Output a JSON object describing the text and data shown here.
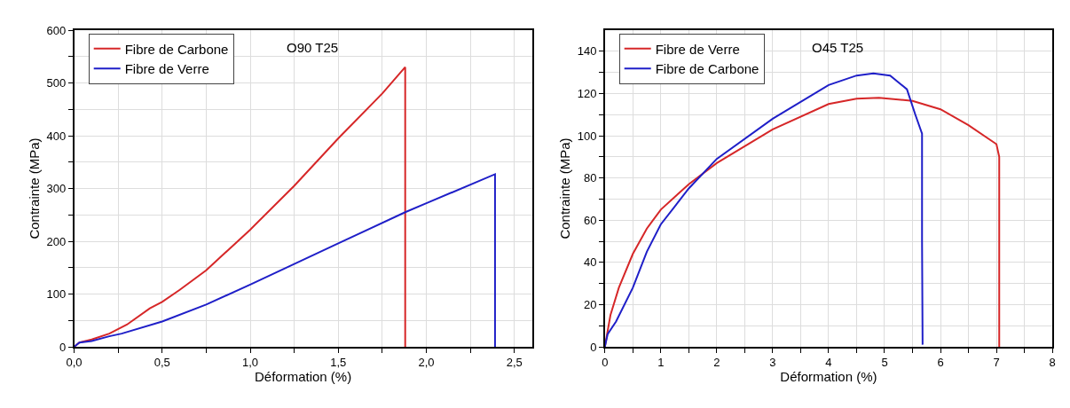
{
  "chart_data": [
    {
      "type": "line",
      "xlabel": "Déformation (%)",
      "ylabel": "Contrainte (MPa)",
      "annotations": [
        "O90 T25"
      ],
      "grid": true,
      "legend": "top left",
      "xlim": [
        0,
        2.6
      ],
      "ylim": [
        0,
        600
      ],
      "xticks": [
        {
          "value": 0,
          "label": "0,0"
        },
        {
          "value": 0.25,
          "label": null
        },
        {
          "value": 0.5,
          "label": "0,5"
        },
        {
          "value": 0.75,
          "label": null
        },
        {
          "value": 1.0,
          "label": "1,0"
        },
        {
          "value": 1.25,
          "label": null
        },
        {
          "value": 1.5,
          "label": "1,5"
        },
        {
          "value": 1.75,
          "label": null
        },
        {
          "value": 2.0,
          "label": "2,0"
        },
        {
          "value": 2.25,
          "label": null
        },
        {
          "value": 2.5,
          "label": "2,5"
        }
      ],
      "yticks": [
        0,
        {
          "value": 50,
          "label": null
        },
        100,
        {
          "value": 150,
          "label": null
        },
        200,
        {
          "value": 250,
          "label": null
        },
        300,
        {
          "value": 350,
          "label": null
        },
        400,
        {
          "value": 450,
          "label": null
        },
        500,
        {
          "value": 550,
          "label": null
        },
        600
      ],
      "series": [
        {
          "name": "Fibre de Carbone",
          "color": "#d62728",
          "x": [
            0,
            0.03,
            0.1,
            0.2,
            0.3,
            0.43,
            0.5,
            0.6,
            0.75,
            1.0,
            1.25,
            1.5,
            1.75,
            1.88,
            1.88
          ],
          "values": [
            0,
            8,
            14,
            25,
            42,
            73,
            85,
            108,
            145,
            222,
            305,
            395,
            480,
            530,
            0
          ]
        },
        {
          "name": "Fibre de Verre",
          "color": "#1f1fc8",
          "x": [
            0,
            0.03,
            0.1,
            0.2,
            0.27,
            0.5,
            0.75,
            1.0,
            1.5,
            1.88,
            2.0,
            2.39,
            2.39
          ],
          "values": [
            0,
            8,
            11,
            20,
            25,
            48,
            80,
            118,
            196,
            255,
            272,
            327,
            0
          ]
        }
      ]
    },
    {
      "type": "line",
      "xlabel": "Déformation (%)",
      "ylabel": "Contrainte (MPa)",
      "annotations": [
        "O45 T25"
      ],
      "grid": true,
      "legend": "top left",
      "xlim": [
        0,
        8
      ],
      "ylim": [
        0,
        150
      ],
      "xticks": [
        0,
        {
          "value": 0.5,
          "label": null
        },
        1,
        {
          "value": 1.5,
          "label": null
        },
        2,
        {
          "value": 2.5,
          "label": null
        },
        3,
        {
          "value": 3.5,
          "label": null
        },
        4,
        {
          "value": 4.5,
          "label": null
        },
        5,
        {
          "value": 5.5,
          "label": null
        },
        6,
        {
          "value": 6.5,
          "label": null
        },
        7,
        {
          "value": 7.5,
          "label": null
        },
        8
      ],
      "yticks": [
        0,
        {
          "value": 10,
          "label": null
        },
        20,
        {
          "value": 30,
          "label": null
        },
        40,
        {
          "value": 50,
          "label": null
        },
        60,
        {
          "value": 70,
          "label": null
        },
        80,
        {
          "value": 90,
          "label": null
        },
        100,
        {
          "value": 110,
          "label": null
        },
        120,
        {
          "value": 130,
          "label": null
        },
        140
      ],
      "series": [
        {
          "name": "Fibre de Verre",
          "color": "#d62728",
          "x": [
            0,
            0.1,
            0.25,
            0.5,
            0.75,
            1.0,
            1.5,
            2.0,
            3.0,
            4.0,
            4.5,
            4.9,
            5.5,
            6.0,
            6.5,
            7.0,
            7.05,
            7.05
          ],
          "values": [
            0,
            15,
            28,
            44,
            56,
            65,
            77,
            87,
            103,
            115,
            117.5,
            118,
            116.5,
            112.5,
            105,
            96,
            90,
            0
          ]
        },
        {
          "name": "Fibre de Carbone",
          "color": "#1f1fc8",
          "x": [
            0,
            0.05,
            0.2,
            0.5,
            0.75,
            1.0,
            1.5,
            2.0,
            3.0,
            4.0,
            4.5,
            4.8,
            5.1,
            5.4,
            5.55,
            5.67,
            5.67,
            5.68
          ],
          "values": [
            0,
            6,
            12,
            28,
            45,
            58,
            75,
            89,
            108,
            124,
            128.5,
            129.5,
            128.5,
            122,
            110,
            101,
            50,
            1
          ]
        }
      ]
    }
  ]
}
